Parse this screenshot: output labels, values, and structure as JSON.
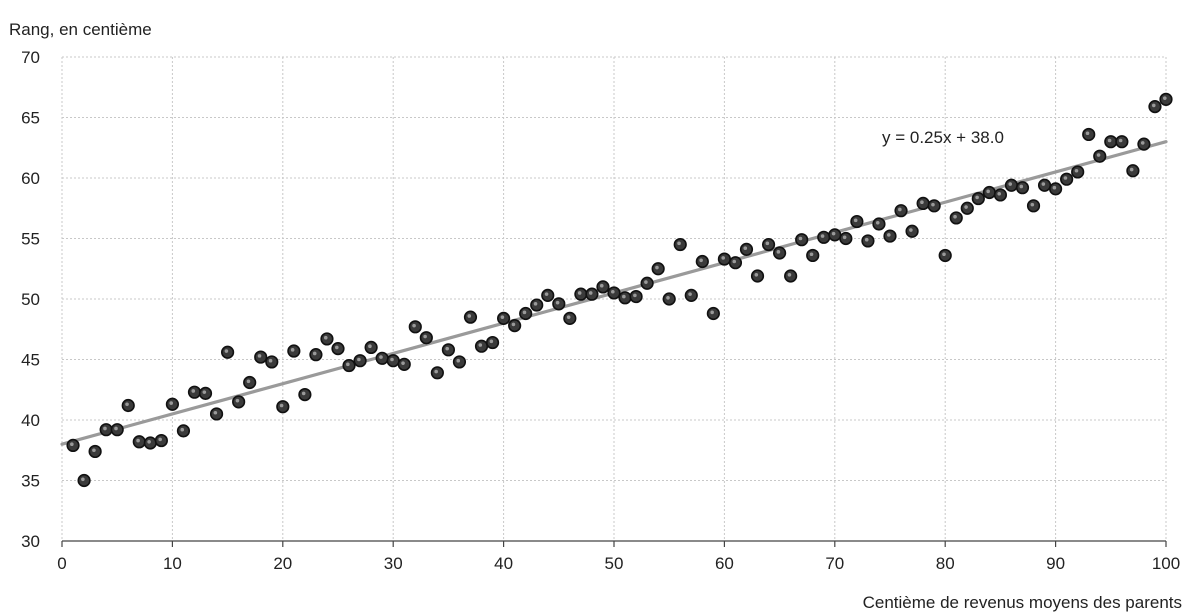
{
  "chart_data": {
    "type": "scatter",
    "ylabel": "Rang, en centième",
    "xlabel": "Centième de revenus moyens des parents",
    "xlim": [
      0,
      100
    ],
    "ylim": [
      30,
      70
    ],
    "x_ticks": [
      0,
      10,
      20,
      30,
      40,
      50,
      60,
      70,
      80,
      90,
      100
    ],
    "y_ticks": [
      30,
      35,
      40,
      45,
      50,
      55,
      60,
      65,
      70
    ],
    "grid": "dotted",
    "point_color": "#333333",
    "point_fill": "#3a3a3a",
    "trend_color": "#9a9a9a",
    "trendline": {
      "label": "y = 0.25x + 38.0",
      "slope": 0.25,
      "intercept": 38.0
    },
    "points": [
      [
        1,
        37.9
      ],
      [
        2,
        35.0
      ],
      [
        3,
        37.4
      ],
      [
        4,
        39.2
      ],
      [
        5,
        39.2
      ],
      [
        6,
        41.2
      ],
      [
        7,
        38.2
      ],
      [
        8,
        38.1
      ],
      [
        9,
        38.3
      ],
      [
        10,
        41.3
      ],
      [
        11,
        39.1
      ],
      [
        12,
        42.3
      ],
      [
        13,
        42.2
      ],
      [
        14,
        40.5
      ],
      [
        15,
        45.6
      ],
      [
        16,
        41.5
      ],
      [
        17,
        43.1
      ],
      [
        18,
        45.2
      ],
      [
        19,
        44.8
      ],
      [
        20,
        41.1
      ],
      [
        21,
        45.7
      ],
      [
        22,
        42.1
      ],
      [
        23,
        45.4
      ],
      [
        24,
        46.7
      ],
      [
        25,
        45.9
      ],
      [
        26,
        44.5
      ],
      [
        27,
        44.9
      ],
      [
        28,
        46.0
      ],
      [
        29,
        45.1
      ],
      [
        30,
        44.9
      ],
      [
        31,
        44.6
      ],
      [
        32,
        47.7
      ],
      [
        33,
        46.8
      ],
      [
        34,
        43.9
      ],
      [
        35,
        45.8
      ],
      [
        36,
        44.8
      ],
      [
        37,
        48.5
      ],
      [
        38,
        46.1
      ],
      [
        39,
        46.4
      ],
      [
        40,
        48.4
      ],
      [
        41,
        47.8
      ],
      [
        42,
        48.8
      ],
      [
        43,
        49.5
      ],
      [
        44,
        50.3
      ],
      [
        45,
        49.6
      ],
      [
        46,
        48.4
      ],
      [
        47,
        50.4
      ],
      [
        48,
        50.4
      ],
      [
        49,
        51.0
      ],
      [
        50,
        50.5
      ],
      [
        51,
        50.1
      ],
      [
        52,
        50.2
      ],
      [
        53,
        51.3
      ],
      [
        54,
        52.5
      ],
      [
        55,
        50.0
      ],
      [
        56,
        54.5
      ],
      [
        57,
        50.3
      ],
      [
        58,
        53.1
      ],
      [
        59,
        48.8
      ],
      [
        60,
        53.3
      ],
      [
        61,
        53.0
      ],
      [
        62,
        54.1
      ],
      [
        63,
        51.9
      ],
      [
        64,
        54.5
      ],
      [
        65,
        53.8
      ],
      [
        66,
        51.9
      ],
      [
        67,
        54.9
      ],
      [
        68,
        53.6
      ],
      [
        69,
        55.1
      ],
      [
        70,
        55.3
      ],
      [
        71,
        55.0
      ],
      [
        72,
        56.4
      ],
      [
        73,
        54.8
      ],
      [
        74,
        56.2
      ],
      [
        75,
        55.2
      ],
      [
        76,
        57.3
      ],
      [
        77,
        55.6
      ],
      [
        78,
        57.9
      ],
      [
        79,
        57.7
      ],
      [
        80,
        53.6
      ],
      [
        81,
        56.7
      ],
      [
        82,
        57.5
      ],
      [
        83,
        58.3
      ],
      [
        84,
        58.8
      ],
      [
        85,
        58.6
      ],
      [
        86,
        59.4
      ],
      [
        87,
        59.2
      ],
      [
        88,
        57.7
      ],
      [
        89,
        59.4
      ],
      [
        90,
        59.1
      ],
      [
        91,
        59.9
      ],
      [
        92,
        60.5
      ],
      [
        93,
        63.6
      ],
      [
        94,
        61.8
      ],
      [
        95,
        63.0
      ],
      [
        96,
        63.0
      ],
      [
        97,
        60.6
      ],
      [
        98,
        62.8
      ],
      [
        99,
        65.9
      ],
      [
        100,
        66.5
      ]
    ]
  }
}
